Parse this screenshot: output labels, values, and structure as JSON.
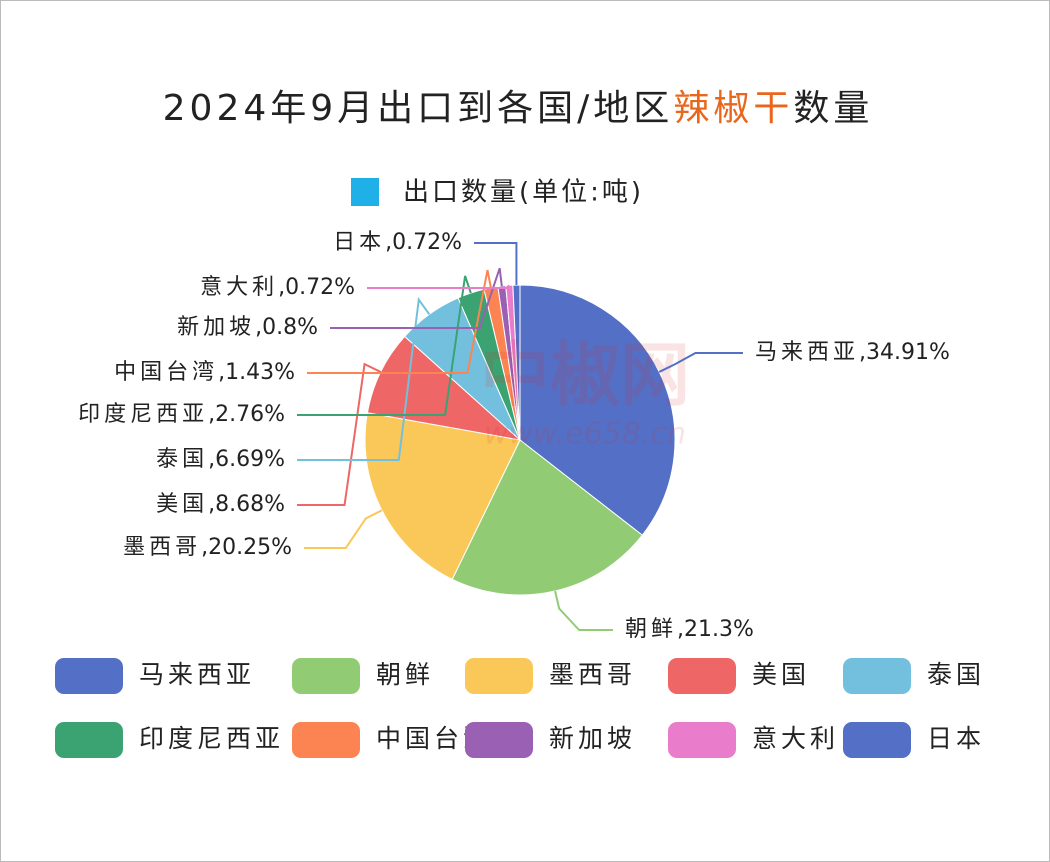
{
  "chart_data": {
    "type": "pie",
    "title": [
      "2024年9月出口到各国/地区",
      "辣椒干",
      "数量"
    ],
    "title_highlight_color": "#e8671c",
    "series_name": "出口数量(单位:吨)",
    "series_color": "#1fb0e8",
    "watermark": [
      "中椒网",
      "www.e658.cn"
    ],
    "label_separator": ",",
    "categories": [
      "马来西亚",
      "朝鲜",
      "墨西哥",
      "美国",
      "泰国",
      "印度尼西亚",
      "中国台湾",
      "新加坡",
      "意大利",
      "日本"
    ],
    "values": [
      34.91,
      21.3,
      20.25,
      8.68,
      6.69,
      2.76,
      1.43,
      0.8,
      0.72,
      0.72
    ],
    "value_labels": [
      "34.91%",
      "21.3%",
      "20.25%",
      "8.68%",
      "6.69%",
      "2.76%",
      "1.43%",
      "0.8%",
      "0.72%",
      "0.72%"
    ],
    "colors": [
      "#5470c6",
      "#91cc75",
      "#fac858",
      "#ee6666",
      "#73c0de",
      "#3ba272",
      "#fc8452",
      "#9a60b4",
      "#ea7ccc",
      "#5470c6"
    ],
    "legend": "bottom"
  }
}
